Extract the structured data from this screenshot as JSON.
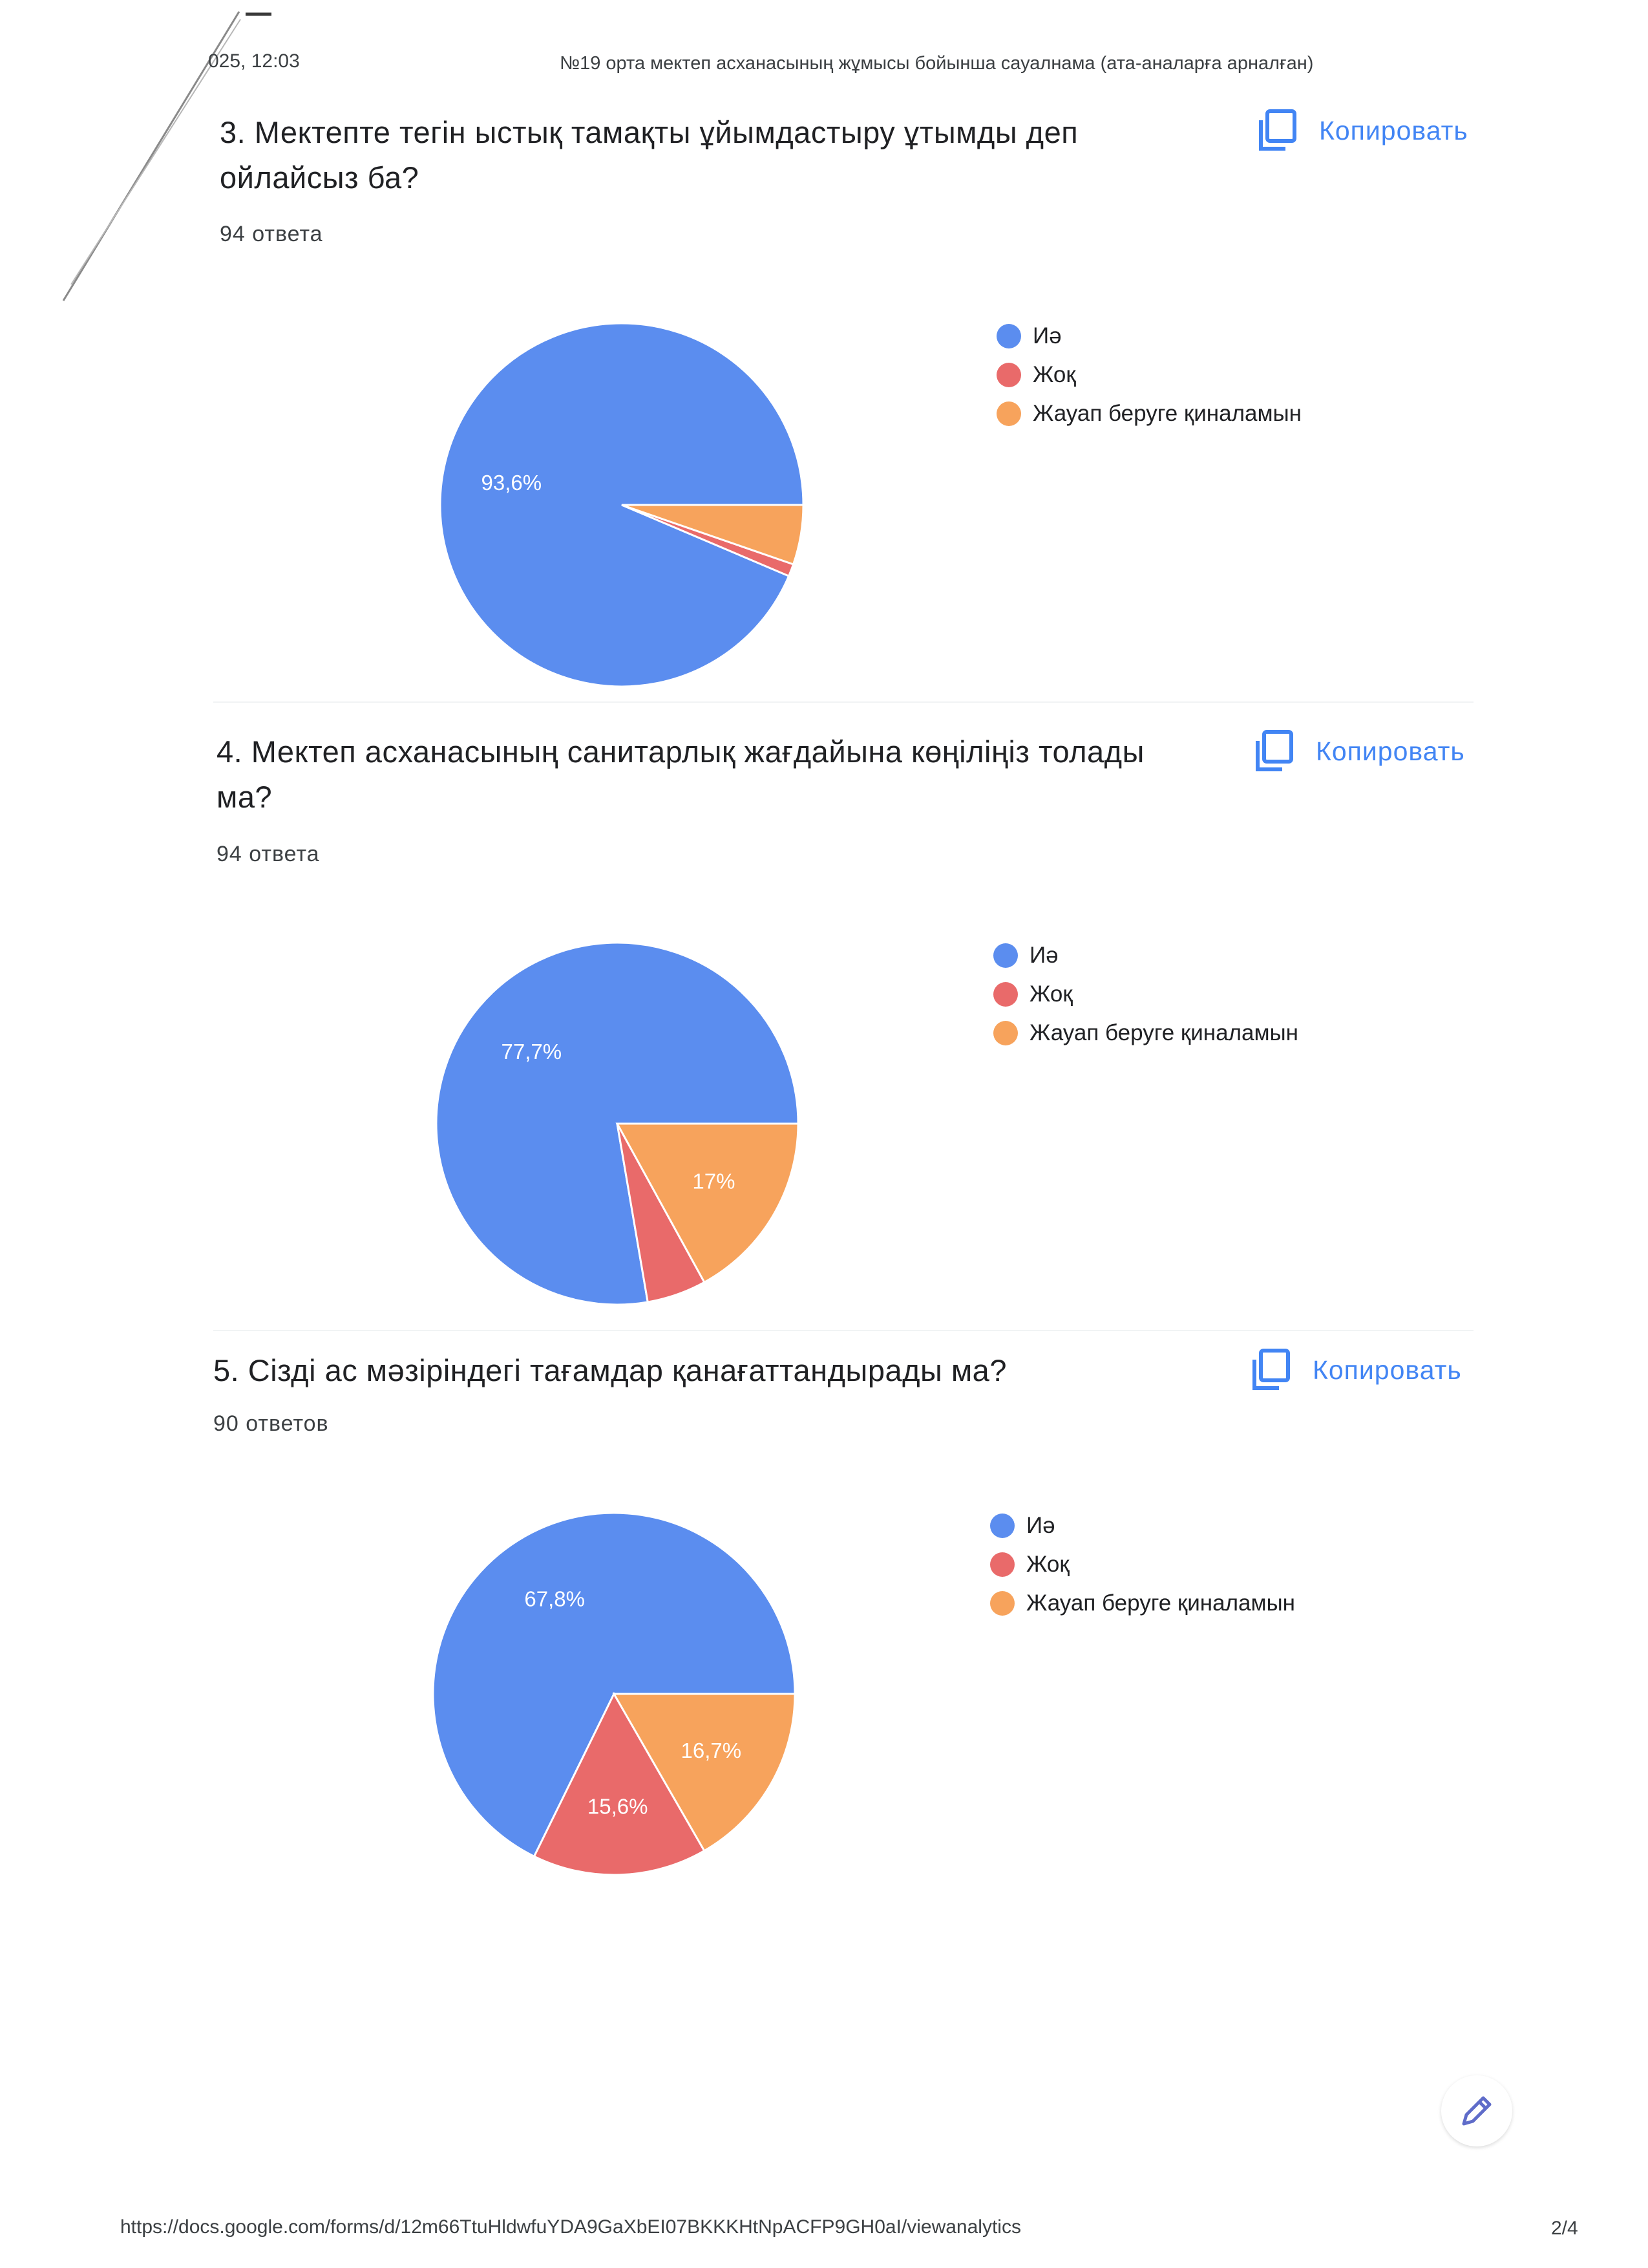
{
  "print_header": {
    "date": "025, 12:03",
    "title": "№19 орта мектеп асханасының жұмысы бойынша сауалнама (ата-аналарға арналған)"
  },
  "copy_label": "Копировать",
  "colors": {
    "blue": "#5b8def",
    "red": "#e96a6a",
    "orange": "#f7a35c",
    "accent": "#4285f4"
  },
  "icons": {
    "copy": "copy-icon",
    "edit": "pencil-icon"
  },
  "questions": [
    {
      "title": "3. Мектепте тегін ыстық тамақты ұйымдастыру ұтымды деп ойлайсыз ба?",
      "count": "94 ответа"
    },
    {
      "title": "4. Мектеп асханасының санитарлық жағдайына көңіліңіз толады ма?",
      "count": "94 ответа"
    },
    {
      "title": "5. Сізді ас мәзіріндегі тағамдар қанағаттандырады ма?",
      "count": "90 ответов"
    }
  ],
  "chart_data": [
    {
      "type": "pie",
      "categories": [
        "Иә",
        "Жоқ",
        "Жауап беруге қиналамын"
      ],
      "values": [
        93.6,
        1.1,
        5.3
      ],
      "labels": [
        "93,6%",
        "",
        ""
      ],
      "legend": "right"
    },
    {
      "type": "pie",
      "categories": [
        "Иә",
        "Жоқ",
        "Жауап беруге қиналамын"
      ],
      "values": [
        77.7,
        5.3,
        17.0
      ],
      "labels": [
        "77,7%",
        "",
        "17%"
      ],
      "legend": "right"
    },
    {
      "type": "pie",
      "categories": [
        "Иә",
        "Жоқ",
        "Жауап беруге қиналамын"
      ],
      "values": [
        67.8,
        15.6,
        16.7
      ],
      "labels": [
        "67,8%",
        "15,6%",
        "16,7%"
      ],
      "legend": "right"
    }
  ],
  "footer": {
    "url": "https://docs.google.com/forms/d/12m66TtuHldwfuYDA9GaXbEI07BKKKHtNpACFP9GH0aI/viewanalytics",
    "page": "2/4"
  }
}
